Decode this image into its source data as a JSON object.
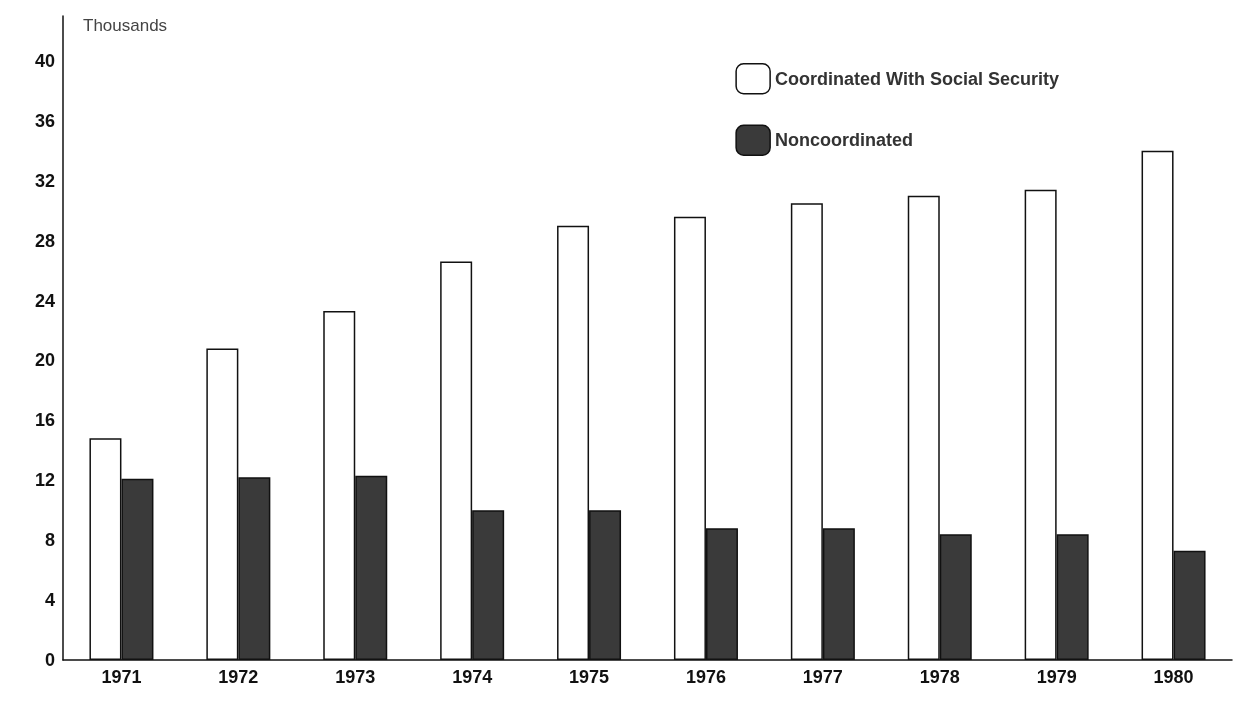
{
  "chart_data": {
    "type": "bar",
    "ylabel": "Thousands",
    "categories": [
      "1971",
      "1972",
      "1973",
      "1974",
      "1975",
      "1976",
      "1977",
      "1978",
      "1979",
      "1980"
    ],
    "series": [
      {
        "name": "Coordinated With Social Security",
        "color": "#ffffff",
        "values": [
          14.8,
          20.8,
          23.3,
          26.6,
          29.0,
          29.6,
          30.5,
          31.0,
          31.4,
          34.0
        ]
      },
      {
        "name": "Noncoordinated",
        "color": "#3a3a3a",
        "values": [
          12.1,
          12.2,
          12.3,
          10.0,
          10.0,
          8.8,
          8.8,
          8.4,
          8.4,
          7.3
        ]
      }
    ],
    "ylim": [
      0,
      43
    ],
    "yticks": [
      0,
      4,
      8,
      12,
      16,
      20,
      24,
      28,
      32,
      36,
      40
    ],
    "grid": false,
    "legend": "top right"
  }
}
